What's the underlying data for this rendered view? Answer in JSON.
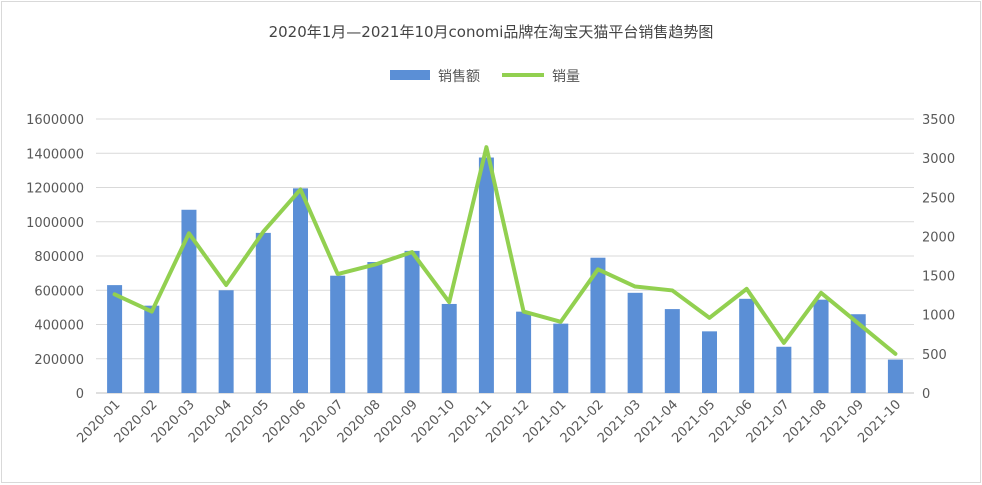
{
  "chart_data": {
    "type": "bar+line",
    "title": "2020年1月—2021年10月conomi品牌在淘宝天猫平台销售趋势图",
    "categories": [
      "2020-01",
      "2020-02",
      "2020-03",
      "2020-04",
      "2020-05",
      "2020-06",
      "2020-07",
      "2020-08",
      "2020-09",
      "2020-10",
      "2020-11",
      "2020-12",
      "2021-01",
      "2021-02",
      "2021-03",
      "2021-04",
      "2021-05",
      "2021-06",
      "2021-07",
      "2021-08",
      "2021-09",
      "2021-10"
    ],
    "series": [
      {
        "name": "销售额",
        "type": "bar",
        "axis": "left",
        "color": "#5b8fd6",
        "values": [
          630000,
          510000,
          1070000,
          600000,
          935000,
          1195000,
          685000,
          765000,
          830000,
          520000,
          1375000,
          475000,
          405000,
          790000,
          585000,
          490000,
          360000,
          550000,
          270000,
          545000,
          460000,
          195000
        ]
      },
      {
        "name": "销量",
        "type": "line",
        "axis": "right",
        "color": "#92d050",
        "values": [
          1260,
          1040,
          2040,
          1380,
          2060,
          2600,
          1520,
          1640,
          1800,
          1160,
          3140,
          1040,
          910,
          1580,
          1360,
          1310,
          960,
          1330,
          640,
          1280,
          890,
          500
        ]
      }
    ],
    "y_left": {
      "range": [
        0,
        1600000
      ],
      "ticks": [
        "0",
        "200000",
        "400000",
        "600000",
        "800000",
        "1000000",
        "1200000",
        "1400000",
        "1600000"
      ]
    },
    "y_right": {
      "range": [
        0,
        3500
      ],
      "ticks": [
        "0",
        "500",
        "1000",
        "1500",
        "2000",
        "2500",
        "3000",
        "3500"
      ]
    },
    "grid": true,
    "legend_position": "top"
  }
}
